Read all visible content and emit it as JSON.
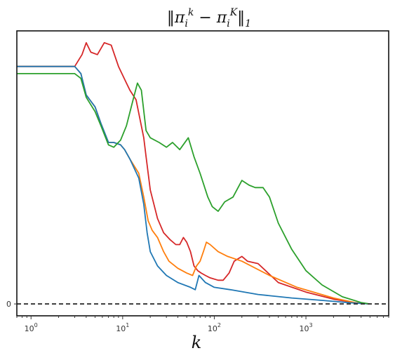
{
  "chart_data": {
    "type": "line",
    "title": "‖π_i^k − π_i^K‖_1",
    "xlabel": "k",
    "ylabel": "",
    "x_scale": "log",
    "xlim": [
      0.7,
      8000
    ],
    "ylim": [
      -0.05,
      1.15
    ],
    "x_ticks": [
      {
        "value": 1,
        "label": "10^0"
      },
      {
        "value": 10,
        "label": "10^1"
      },
      {
        "value": 100,
        "label": "10^2"
      },
      {
        "value": 1000,
        "label": "10^3"
      }
    ],
    "y_ticks": [
      {
        "value": 0,
        "label": "0"
      }
    ],
    "reference_line": {
      "y": 0,
      "style": "dashed"
    },
    "series": [
      {
        "color": "#d62728",
        "points": [
          [
            0.7,
            1.0
          ],
          [
            3,
            1.0
          ],
          [
            3.6,
            1.05
          ],
          [
            4,
            1.1
          ],
          [
            4.5,
            1.06
          ],
          [
            5.3,
            1.05
          ],
          [
            6.3,
            1.1
          ],
          [
            7.5,
            1.09
          ],
          [
            9,
            1.0
          ],
          [
            11,
            0.93
          ],
          [
            12,
            0.9
          ],
          [
            14,
            0.86
          ],
          [
            17,
            0.7
          ],
          [
            18,
            0.62
          ],
          [
            20,
            0.48
          ],
          [
            24,
            0.36
          ],
          [
            28,
            0.3
          ],
          [
            33,
            0.27
          ],
          [
            38,
            0.25
          ],
          [
            42,
            0.25
          ],
          [
            46,
            0.28
          ],
          [
            50,
            0.26
          ],
          [
            55,
            0.22
          ],
          [
            60,
            0.16
          ],
          [
            66,
            0.14
          ],
          [
            72,
            0.13
          ],
          [
            80,
            0.12
          ],
          [
            90,
            0.11
          ],
          [
            110,
            0.1
          ],
          [
            125,
            0.1
          ],
          [
            145,
            0.13
          ],
          [
            165,
            0.18
          ],
          [
            200,
            0.2
          ],
          [
            230,
            0.18
          ],
          [
            300,
            0.17
          ],
          [
            500,
            0.09
          ],
          [
            1000,
            0.05
          ],
          [
            2000,
            0.02
          ],
          [
            3500,
            0.005
          ],
          [
            5000,
            0.0
          ]
        ]
      },
      {
        "color": "#ff7f0e",
        "points": [
          [
            0.7,
            1.0
          ],
          [
            3,
            1.0
          ],
          [
            3.5,
            0.97
          ],
          [
            4,
            0.88
          ],
          [
            5,
            0.83
          ],
          [
            5.8,
            0.76
          ],
          [
            7,
            0.68
          ],
          [
            8,
            0.68
          ],
          [
            9.5,
            0.67
          ],
          [
            10.5,
            0.65
          ],
          [
            12,
            0.61
          ],
          [
            15,
            0.55
          ],
          [
            17,
            0.45
          ],
          [
            19,
            0.35
          ],
          [
            21,
            0.31
          ],
          [
            24,
            0.28
          ],
          [
            28,
            0.22
          ],
          [
            32,
            0.18
          ],
          [
            40,
            0.15
          ],
          [
            50,
            0.13
          ],
          [
            58,
            0.12
          ],
          [
            64,
            0.16
          ],
          [
            70,
            0.18
          ],
          [
            76,
            0.22
          ],
          [
            82,
            0.26
          ],
          [
            90,
            0.25
          ],
          [
            110,
            0.22
          ],
          [
            140,
            0.2
          ],
          [
            200,
            0.18
          ],
          [
            400,
            0.12
          ],
          [
            800,
            0.07
          ],
          [
            2000,
            0.025
          ],
          [
            3500,
            0.005
          ],
          [
            5000,
            0.0
          ]
        ]
      },
      {
        "color": "#1f77b4",
        "points": [
          [
            0.7,
            1.0
          ],
          [
            3,
            1.0
          ],
          [
            3.5,
            0.97
          ],
          [
            4,
            0.88
          ],
          [
            5,
            0.83
          ],
          [
            5.8,
            0.76
          ],
          [
            7,
            0.68
          ],
          [
            8,
            0.68
          ],
          [
            9.5,
            0.67
          ],
          [
            10.5,
            0.65
          ],
          [
            12,
            0.61
          ],
          [
            15,
            0.53
          ],
          [
            17,
            0.42
          ],
          [
            18.5,
            0.3
          ],
          [
            20,
            0.22
          ],
          [
            24,
            0.16
          ],
          [
            30,
            0.12
          ],
          [
            40,
            0.09
          ],
          [
            55,
            0.07
          ],
          [
            62,
            0.06
          ],
          [
            68,
            0.12
          ],
          [
            80,
            0.09
          ],
          [
            100,
            0.07
          ],
          [
            150,
            0.06
          ],
          [
            300,
            0.04
          ],
          [
            700,
            0.025
          ],
          [
            1500,
            0.015
          ],
          [
            3000,
            0.005
          ],
          [
            5000,
            0.0
          ]
        ]
      },
      {
        "color": "#2ca02c",
        "points": [
          [
            0.7,
            0.97
          ],
          [
            3,
            0.97
          ],
          [
            3.5,
            0.95
          ],
          [
            4,
            0.87
          ],
          [
            5,
            0.81
          ],
          [
            5.8,
            0.75
          ],
          [
            7,
            0.67
          ],
          [
            8,
            0.66
          ],
          [
            9.5,
            0.69
          ],
          [
            11,
            0.75
          ],
          [
            13,
            0.86
          ],
          [
            14.5,
            0.93
          ],
          [
            16,
            0.9
          ],
          [
            18,
            0.73
          ],
          [
            20,
            0.7
          ],
          [
            25,
            0.68
          ],
          [
            30,
            0.66
          ],
          [
            35,
            0.68
          ],
          [
            42,
            0.65
          ],
          [
            52,
            0.7
          ],
          [
            60,
            0.62
          ],
          [
            70,
            0.55
          ],
          [
            85,
            0.45
          ],
          [
            95,
            0.41
          ],
          [
            110,
            0.39
          ],
          [
            130,
            0.43
          ],
          [
            160,
            0.45
          ],
          [
            200,
            0.52
          ],
          [
            240,
            0.5
          ],
          [
            280,
            0.49
          ],
          [
            340,
            0.49
          ],
          [
            400,
            0.45
          ],
          [
            500,
            0.34
          ],
          [
            700,
            0.23
          ],
          [
            1000,
            0.14
          ],
          [
            1500,
            0.08
          ],
          [
            2500,
            0.03
          ],
          [
            4000,
            0.006
          ],
          [
            5000,
            0.0
          ]
        ]
      }
    ]
  }
}
